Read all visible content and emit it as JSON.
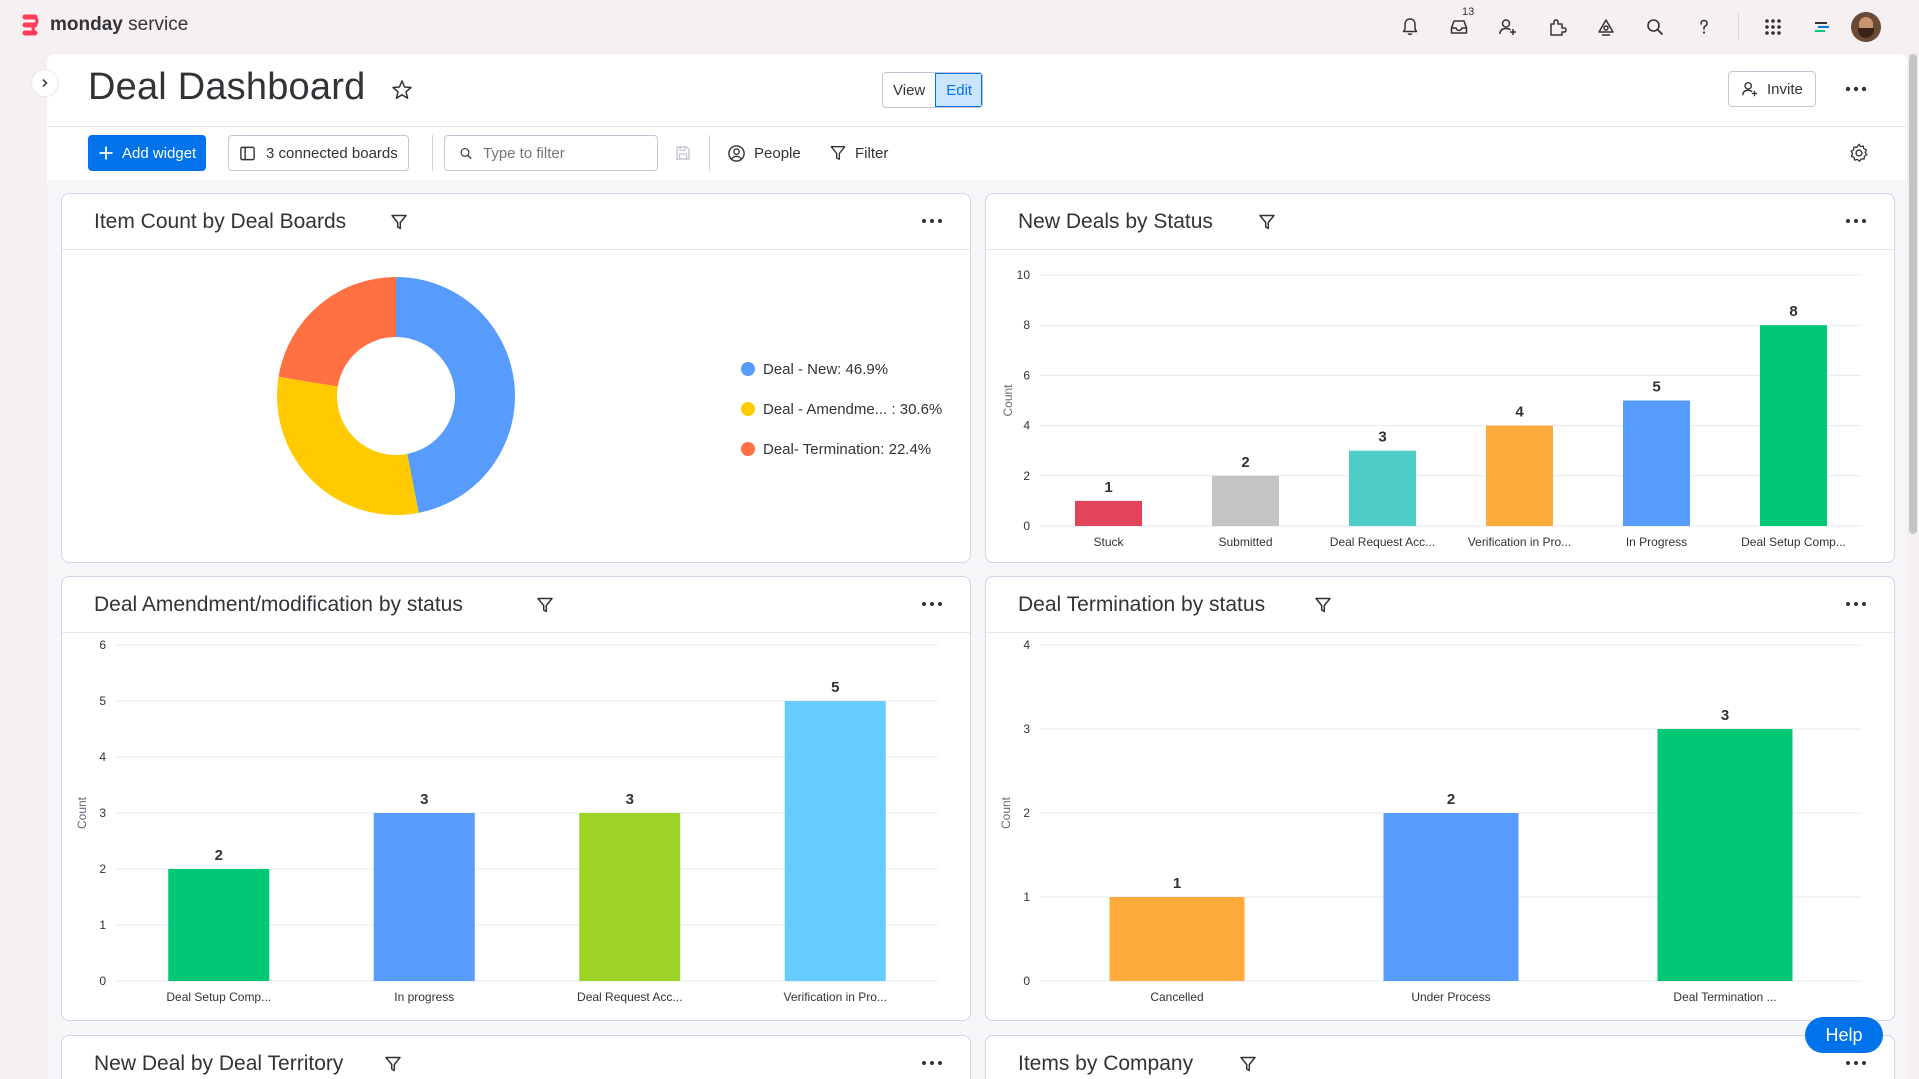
{
  "app": {
    "brand_bold": "monday",
    "brand_light": " service",
    "inbox_count": "13"
  },
  "header": {
    "title": "Deal Dashboard",
    "view_label": "View",
    "edit_label": "Edit",
    "invite_label": "Invite"
  },
  "toolbar": {
    "add_widget_label": "Add widget",
    "boards_label": "3 connected boards",
    "filter_placeholder": "Type to filter",
    "people_label": "People",
    "filter_label": "Filter"
  },
  "colors": {
    "blue": "#579bfc",
    "yellow": "#ffcb00",
    "orange": "#ff7043",
    "red": "#e2445c",
    "grey": "#c4c4c4",
    "teal": "#4eccc6",
    "amber": "#fdab3d",
    "green": "#00c875",
    "lime": "#9cd326",
    "sky": "#66ccff",
    "accent": "#0073ea"
  },
  "widgets": {
    "item_count": {
      "title": "Item Count by Deal Boards"
    },
    "new_deals": {
      "title": "New Deals by Status"
    },
    "amendment": {
      "title": "Deal Amendment/modification by status"
    },
    "termination": {
      "title": "Deal Termination by status"
    },
    "territory": {
      "title": "New Deal by Deal Territory"
    },
    "company": {
      "title": "Items by Company"
    }
  },
  "help_label": "Help",
  "chart_data": [
    {
      "id": "item_count",
      "type": "pie",
      "donut": true,
      "legend_position": "right",
      "slices": [
        {
          "label": "Deal - New: 46.9%",
          "value": 46.9,
          "color": "#579bfc"
        },
        {
          "label": "Deal - Amendme... : 30.6%",
          "value": 30.6,
          "color": "#ffcb00"
        },
        {
          "label": "Deal- Termination: 22.4%",
          "value": 22.4,
          "color": "#ff7043"
        }
      ]
    },
    {
      "id": "new_deals",
      "type": "bar",
      "ylabel": "Count",
      "ylim": [
        0,
        10
      ],
      "yticks": [
        0,
        2,
        4,
        6,
        8,
        10
      ],
      "categories": [
        "Stuck",
        "Submitted",
        "Deal Request Acc...",
        "Verification in Pro...",
        "In Progress",
        "Deal Setup Comp..."
      ],
      "values": [
        1,
        2,
        3,
        4,
        5,
        8
      ],
      "colors": [
        "#e2445c",
        "#c4c4c4",
        "#4eccc6",
        "#fdab3d",
        "#579bfc",
        "#00c875"
      ]
    },
    {
      "id": "amendment",
      "type": "bar",
      "ylabel": "Count",
      "ylim": [
        0,
        6
      ],
      "yticks": [
        0,
        1,
        2,
        3,
        4,
        5,
        6
      ],
      "categories": [
        "Deal Setup Comp...",
        "In progress",
        "Deal Request Acc...",
        "Verification in Pro..."
      ],
      "values": [
        2,
        3,
        3,
        5
      ],
      "colors": [
        "#00c875",
        "#579bfc",
        "#9cd326",
        "#66ccff"
      ]
    },
    {
      "id": "termination",
      "type": "bar",
      "ylabel": "Count",
      "ylim": [
        0,
        4
      ],
      "yticks": [
        0,
        1,
        2,
        3,
        4
      ],
      "categories": [
        "Cancelled",
        "Under Process",
        "Deal Termination ..."
      ],
      "values": [
        1,
        2,
        3
      ],
      "colors": [
        "#fdab3d",
        "#579bfc",
        "#00c875"
      ]
    }
  ]
}
